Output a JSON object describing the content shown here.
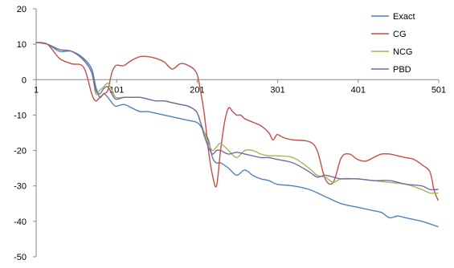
{
  "chart_data": {
    "type": "line",
    "title": "",
    "xlabel": "",
    "ylabel": "",
    "xlim": [
      1,
      501
    ],
    "ylim": [
      -50,
      20
    ],
    "x_ticks": [
      1,
      101,
      201,
      301,
      401,
      501
    ],
    "y_ticks": [
      20,
      10,
      0,
      -10,
      -20,
      -30,
      -40,
      -50
    ],
    "grid": false,
    "legend_position": "top-right",
    "series": [
      {
        "name": "Exact",
        "color": "#4F81BD",
        "x": [
          1,
          15,
          30,
          45,
          60,
          70,
          75,
          80,
          85,
          90,
          95,
          100,
          110,
          120,
          130,
          140,
          150,
          160,
          170,
          180,
          190,
          200,
          205,
          210,
          215,
          220,
          225,
          230,
          240,
          250,
          260,
          270,
          280,
          290,
          300,
          320,
          340,
          360,
          380,
          400,
          420,
          430,
          440,
          450,
          460,
          480,
          500
        ],
        "y": [
          10.5,
          10,
          8,
          8,
          6,
          3,
          -2,
          -5,
          -4,
          -5,
          -6.5,
          -7.5,
          -7,
          -8,
          -9,
          -9,
          -9.5,
          -10,
          -10.5,
          -11,
          -11.5,
          -12,
          -13,
          -15,
          -17,
          -22,
          -23.5,
          -23.5,
          -25,
          -27,
          -25.5,
          -27,
          -28,
          -28.5,
          -29.5,
          -30,
          -31,
          -33,
          -35,
          -36,
          -37,
          -37.5,
          -39,
          -38.5,
          -39,
          -40,
          -41.5
        ]
      },
      {
        "name": "CG",
        "color": "#C0504D",
        "x": [
          1,
          15,
          30,
          45,
          60,
          70,
          75,
          80,
          85,
          90,
          95,
          100,
          105,
          110,
          120,
          130,
          140,
          150,
          160,
          170,
          180,
          190,
          200,
          205,
          210,
          215,
          220,
          225,
          230,
          235,
          240,
          245,
          250,
          255,
          260,
          270,
          280,
          290,
          295,
          300,
          305,
          310,
          320,
          340,
          350,
          360,
          370,
          380,
          390,
          400,
          410,
          420,
          430,
          440,
          450,
          460,
          470,
          480,
          490,
          495,
          500
        ],
        "y": [
          10.5,
          10,
          6,
          4.5,
          3.5,
          -4,
          -6,
          -5,
          -4,
          -3,
          2,
          4,
          4,
          4,
          5.5,
          6.5,
          6.5,
          6,
          5,
          3,
          4.5,
          4,
          2,
          -3,
          -10,
          -20,
          -27,
          -30,
          -20,
          -12,
          -8,
          -9,
          -10,
          -10,
          -11,
          -12,
          -13,
          -15,
          -17,
          -15.5,
          -16,
          -16.5,
          -17,
          -17.5,
          -20,
          -28,
          -29,
          -22,
          -21,
          -22.5,
          -23,
          -22,
          -21,
          -21,
          -21.5,
          -22,
          -22.5,
          -24,
          -26,
          -31,
          -34
        ]
      },
      {
        "name": "NCG",
        "color": "#9BBB59",
        "x": [
          1,
          15,
          30,
          45,
          60,
          70,
          75,
          80,
          85,
          90,
          95,
          100,
          110,
          120,
          130,
          140,
          150,
          160,
          170,
          180,
          190,
          200,
          205,
          210,
          215,
          220,
          225,
          230,
          240,
          250,
          260,
          270,
          280,
          290,
          300,
          320,
          340,
          350,
          360,
          370,
          380,
          400,
          420,
          440,
          460,
          480,
          490,
          500
        ],
        "y": [
          10.5,
          10,
          8.5,
          8,
          5.5,
          2,
          -4,
          -3,
          -2,
          -1,
          -3,
          -5,
          -5,
          -5,
          -5,
          -5.5,
          -6,
          -6,
          -6.5,
          -7,
          -7.5,
          -9,
          -12,
          -15,
          -18,
          -20,
          -19,
          -18,
          -20,
          -22,
          -20,
          -20,
          -21,
          -21.5,
          -21.5,
          -22,
          -25,
          -27,
          -27.5,
          -29,
          -28,
          -28,
          -28.5,
          -29,
          -29.5,
          -31,
          -32,
          -32
        ]
      },
      {
        "name": "PBD",
        "color": "#8064A2",
        "x": [
          1,
          15,
          30,
          45,
          60,
          70,
          75,
          80,
          85,
          90,
          95,
          100,
          110,
          120,
          130,
          140,
          150,
          160,
          170,
          180,
          190,
          200,
          205,
          210,
          215,
          220,
          225,
          230,
          240,
          250,
          260,
          270,
          280,
          290,
          300,
          320,
          340,
          350,
          360,
          370,
          380,
          400,
          420,
          440,
          460,
          480,
          490,
          500
        ],
        "y": [
          10.5,
          10,
          8.5,
          8,
          5.5,
          2,
          -3,
          -4,
          -2.5,
          -2,
          -4,
          -5.5,
          -5,
          -5,
          -5,
          -5.5,
          -6,
          -6,
          -6.5,
          -7,
          -7.5,
          -9,
          -12,
          -16,
          -19,
          -21,
          -20,
          -20,
          -21,
          -20.5,
          -21,
          -21.5,
          -22,
          -22,
          -22.5,
          -23.5,
          -26,
          -27.5,
          -27,
          -27.5,
          -28,
          -28,
          -28.5,
          -28.5,
          -29.5,
          -30,
          -31,
          -31
        ]
      }
    ]
  }
}
